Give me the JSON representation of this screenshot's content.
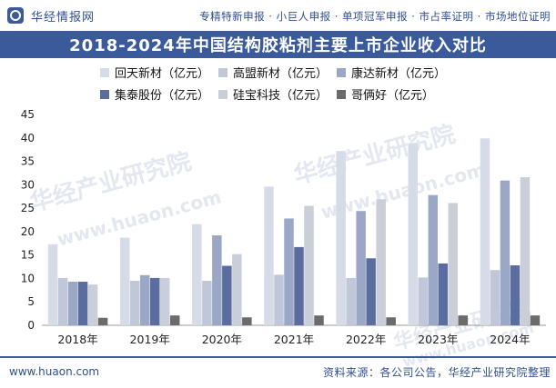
{
  "header": {
    "brand": "华经情报网",
    "tagline": "专精特新申报 · 小巨人申报 · 单项冠军申报 · 市占率证明 · 市场地位证明"
  },
  "watermark": {
    "cn": "华经产业研究院",
    "en": "www.huaon.com"
  },
  "colors": {
    "title_bg": "#3a5a9c",
    "brand": "#2f4f8f"
  },
  "chart_data": {
    "type": "bar",
    "title": "2018-2024年中国结构胶粘剂主要上市企业收入对比",
    "categories": [
      "2018年",
      "2019年",
      "2020年",
      "2021年",
      "2022年",
      "2023年",
      "2024年"
    ],
    "ylim": [
      0,
      45
    ],
    "yticks": [
      0,
      5,
      10,
      15,
      20,
      25,
      30,
      35,
      40,
      45
    ],
    "grid": false,
    "legend_position": "top",
    "series": [
      {
        "name": "回天新材（亿元）",
        "color": "#d6dbe8",
        "values": [
          17.3,
          18.7,
          21.6,
          29.6,
          37.2,
          38.9,
          39.9
        ]
      },
      {
        "name": "高盟新材（亿元）",
        "color": "#c0c7d9",
        "values": [
          10.1,
          9.5,
          9.5,
          10.8,
          10.1,
          10.2,
          11.8
        ]
      },
      {
        "name": "康达新材（亿元）",
        "color": "#9aa7c6",
        "values": [
          9.3,
          10.7,
          19.2,
          22.8,
          24.4,
          27.8,
          30.9
        ]
      },
      {
        "name": "集泰股份（亿元）",
        "color": "#5a6d9e",
        "values": [
          9.3,
          10.1,
          12.7,
          16.7,
          14.3,
          13.2,
          12.8
        ]
      },
      {
        "name": "硅宝科技（亿元）",
        "color": "#c9ced9",
        "values": [
          8.7,
          10.1,
          15.2,
          25.5,
          26.9,
          26.1,
          31.6
        ]
      },
      {
        "name": "哥俩好（亿元）",
        "color": "#6b6b6b",
        "values": [
          1.6,
          2.1,
          1.7,
          2.1,
          1.7,
          2.1,
          2.1
        ]
      }
    ]
  },
  "footer": {
    "website": "www.huaon.com",
    "source": "资料来源：各公司公告，华经产业研究院整理"
  }
}
